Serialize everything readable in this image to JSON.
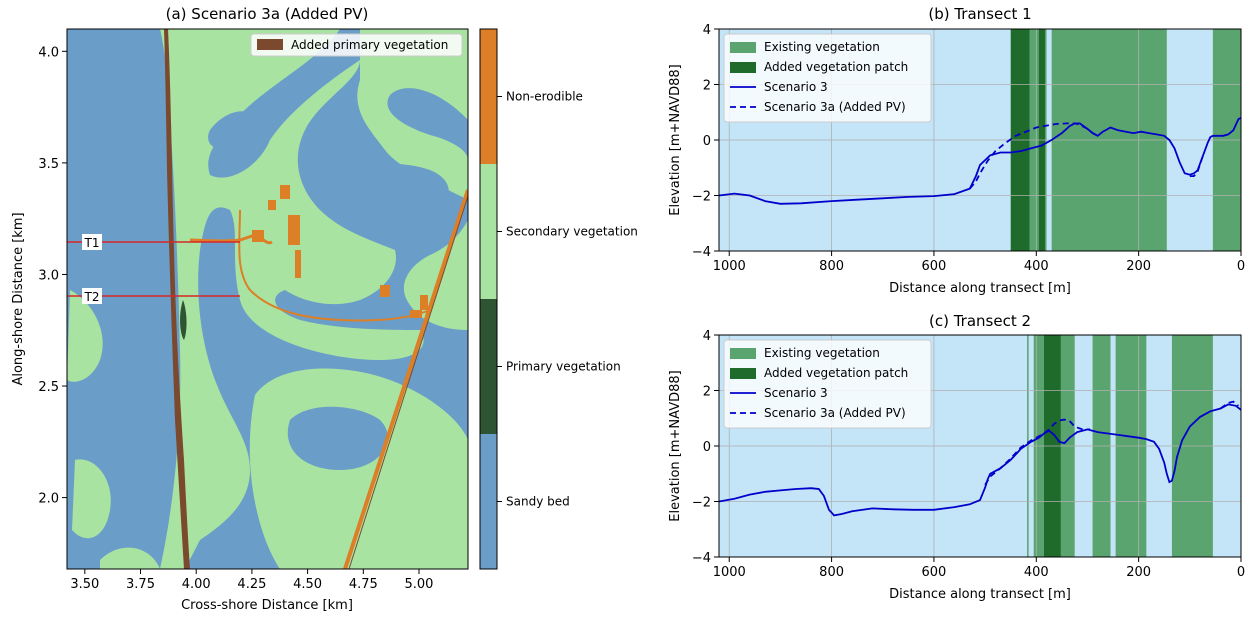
{
  "chart_data": [
    {
      "type": "heatmap",
      "title": "(a) Scenario 3a (Added PV)",
      "xlabel": "Cross-shore Distance [km]",
      "ylabel": "Along-shore Distance [km]",
      "xlim": [
        3.42,
        5.22
      ],
      "ylim": [
        1.68,
        4.1
      ],
      "xticks": [
        "3.50",
        "3.75",
        "4.00",
        "4.25",
        "4.50",
        "4.75",
        "5.00"
      ],
      "xtick_values": [
        3.5,
        3.75,
        4.0,
        4.25,
        4.5,
        4.75,
        5.0
      ],
      "yticks": [
        "2.0",
        "2.5",
        "3.0",
        "3.5",
        "4.0"
      ],
      "ytick_values": [
        2.0,
        2.5,
        3.0,
        3.5,
        4.0
      ],
      "legend": {
        "label": "Added primary vegetation",
        "color": "#7b4a2e",
        "placement": "upper-right"
      },
      "colorbar": [
        {
          "label": "Sandy bed",
          "color": "#6a9ec9"
        },
        {
          "label": "Primary vegetation",
          "color": "#2f5433"
        },
        {
          "label": "Secondary vegetation",
          "color": "#a8e3a2"
        },
        {
          "label": "Non-erodible",
          "color": "#dd7f26"
        }
      ],
      "transects": [
        {
          "label": "T1",
          "y": 3.13,
          "x_start": 3.42,
          "x_end": 4.22
        },
        {
          "label": "T2",
          "y": 2.88,
          "x_start": 3.42,
          "x_end": 4.2
        }
      ]
    },
    {
      "type": "line",
      "title": "(b) Transect 1",
      "xlabel": "Distance along transect [m]",
      "ylabel": "Elevation [m+NAVD88]",
      "xlim": [
        1020,
        0
      ],
      "ylim": [
        -4,
        4
      ],
      "xticks": [
        "1000",
        "800",
        "600",
        "400",
        "200",
        "0"
      ],
      "xtick_values": [
        1000,
        800,
        600,
        400,
        200,
        0
      ],
      "yticks": [
        "−4",
        "−2",
        "0",
        "2",
        "4"
      ],
      "ytick_values": [
        -4,
        -2,
        0,
        2,
        4
      ],
      "grid": true,
      "legend_placement": "upper-left",
      "legend": [
        {
          "label": "Existing vegetation",
          "kind": "patch",
          "color": "#5aa56f"
        },
        {
          "label": "Added vegetation patch",
          "kind": "patch",
          "color": "#1f6b2c"
        },
        {
          "label": "Scenario 3",
          "kind": "line",
          "color": "#0000cc"
        },
        {
          "label": "Scenario 3a (Added PV)",
          "kind": "dashed",
          "color": "#0000cc"
        }
      ],
      "existing_vegetation_spans": [
        [
          413,
          380
        ],
        [
          370,
          145
        ],
        [
          55,
          0
        ]
      ],
      "added_vegetation_spans": [
        [
          450,
          413
        ],
        [
          395,
          383
        ]
      ],
      "series": [
        {
          "name": "Scenario 3",
          "style": "solid",
          "x": [
            1020,
            990,
            960,
            930,
            900,
            860,
            800,
            750,
            700,
            650,
            600,
            560,
            530,
            518,
            510,
            490,
            470,
            450,
            430,
            410,
            390,
            370,
            350,
            335,
            325,
            315,
            300,
            290,
            280,
            270,
            255,
            240,
            225,
            210,
            195,
            180,
            165,
            150,
            140,
            130,
            120,
            110,
            100,
            92,
            85,
            75,
            65,
            60,
            55,
            45,
            35,
            25,
            15,
            5,
            0
          ],
          "y": [
            -2.0,
            -1.93,
            -2.0,
            -2.2,
            -2.3,
            -2.28,
            -2.2,
            -2.15,
            -2.1,
            -2.05,
            -2.02,
            -1.95,
            -1.75,
            -1.3,
            -0.9,
            -0.55,
            -0.45,
            -0.45,
            -0.4,
            -0.3,
            -0.2,
            0.0,
            0.25,
            0.5,
            0.6,
            0.6,
            0.4,
            0.25,
            0.15,
            0.3,
            0.45,
            0.35,
            0.3,
            0.25,
            0.3,
            0.25,
            0.2,
            0.15,
            0.0,
            -0.3,
            -0.8,
            -1.2,
            -1.25,
            -1.2,
            -1.1,
            -0.6,
            -0.1,
            0.1,
            0.15,
            0.15,
            0.15,
            0.2,
            0.35,
            0.75,
            0.8
          ]
        },
        {
          "name": "Scenario 3a (Added PV)",
          "style": "dashed",
          "x": [
            530,
            518,
            510,
            495,
            480,
            460,
            440,
            420,
            400,
            380,
            360,
            340,
            325,
            315,
            300,
            290,
            280
          ],
          "y": [
            -1.75,
            -1.5,
            -1.2,
            -0.75,
            -0.4,
            -0.1,
            0.15,
            0.3,
            0.45,
            0.52,
            0.58,
            0.6,
            0.6,
            0.55,
            0.4,
            0.25,
            0.15
          ]
        },
        {
          "name": "Scenario 3a (Added PV)",
          "style": "dashed",
          "x": [
            100,
            92,
            85,
            75
          ],
          "y": [
            -1.3,
            -1.3,
            -1.15,
            -0.6
          ]
        }
      ]
    },
    {
      "type": "line",
      "title": "(c) Transect 2",
      "xlabel": "Distance along transect [m]",
      "ylabel": "Elevation [m+NAVD88]",
      "xlim": [
        1020,
        0
      ],
      "ylim": [
        -4,
        4
      ],
      "xticks": [
        "1000",
        "800",
        "600",
        "400",
        "200",
        "0"
      ],
      "xtick_values": [
        1000,
        800,
        600,
        400,
        200,
        0
      ],
      "yticks": [
        "−4",
        "−2",
        "0",
        "2",
        "4"
      ],
      "ytick_values": [
        -4,
        -2,
        0,
        2,
        4
      ],
      "grid": true,
      "legend_placement": "upper-left",
      "legend": [
        {
          "label": "Existing vegetation",
          "kind": "patch",
          "color": "#5aa56f"
        },
        {
          "label": "Added vegetation patch",
          "kind": "patch",
          "color": "#1f6b2c"
        },
        {
          "label": "Scenario 3",
          "kind": "line",
          "color": "#0000cc"
        },
        {
          "label": "Scenario 3a (Added PV)",
          "kind": "dashed",
          "color": "#0000cc"
        }
      ],
      "existing_vegetation_spans": [
        [
          418,
          415
        ],
        [
          405,
          385
        ],
        [
          352,
          325
        ],
        [
          290,
          255
        ],
        [
          245,
          185
        ],
        [
          135,
          55
        ]
      ],
      "added_vegetation_spans": [
        [
          385,
          352
        ]
      ],
      "series": [
        {
          "name": "Scenario 3",
          "style": "solid",
          "x": [
            1020,
            990,
            960,
            930,
            900,
            870,
            840,
            825,
            815,
            805,
            795,
            780,
            760,
            720,
            680,
            640,
            600,
            560,
            530,
            510,
            500,
            495,
            490,
            470,
            450,
            430,
            410,
            395,
            385,
            375,
            365,
            355,
            345,
            335,
            320,
            300,
            280,
            260,
            240,
            220,
            200,
            185,
            170,
            160,
            150,
            145,
            140,
            135,
            130,
            125,
            115,
            100,
            80,
            60,
            40,
            25,
            10,
            0
          ],
          "y": [
            -2.0,
            -1.9,
            -1.75,
            -1.65,
            -1.6,
            -1.55,
            -1.52,
            -1.55,
            -1.8,
            -2.3,
            -2.5,
            -2.45,
            -2.35,
            -2.25,
            -2.28,
            -2.3,
            -2.3,
            -2.2,
            -2.1,
            -1.95,
            -1.5,
            -1.2,
            -1.0,
            -0.8,
            -0.5,
            -0.1,
            0.15,
            0.3,
            0.45,
            0.55,
            0.4,
            0.15,
            0.1,
            0.3,
            0.5,
            0.6,
            0.5,
            0.45,
            0.4,
            0.35,
            0.3,
            0.25,
            0.15,
            -0.1,
            -0.6,
            -1.0,
            -1.3,
            -1.25,
            -0.9,
            -0.4,
            0.2,
            0.7,
            1.05,
            1.25,
            1.35,
            1.5,
            1.45,
            1.3
          ]
        },
        {
          "name": "Scenario 3a (Added PV)",
          "style": "dashed",
          "x": [
            500,
            490,
            470,
            450,
            430,
            410,
            395,
            385,
            375,
            365,
            355,
            345,
            335,
            325,
            310,
            295
          ],
          "y": [
            -1.4,
            -1.1,
            -0.8,
            -0.45,
            -0.05,
            0.2,
            0.35,
            0.45,
            0.6,
            0.8,
            0.92,
            0.95,
            0.9,
            0.7,
            0.6,
            0.6
          ]
        },
        {
          "name": "Scenario 3a (Added PV)",
          "style": "dashed",
          "x": [
            40,
            25,
            15,
            5
          ],
          "y": [
            1.35,
            1.55,
            1.6,
            1.45
          ]
        }
      ]
    }
  ]
}
